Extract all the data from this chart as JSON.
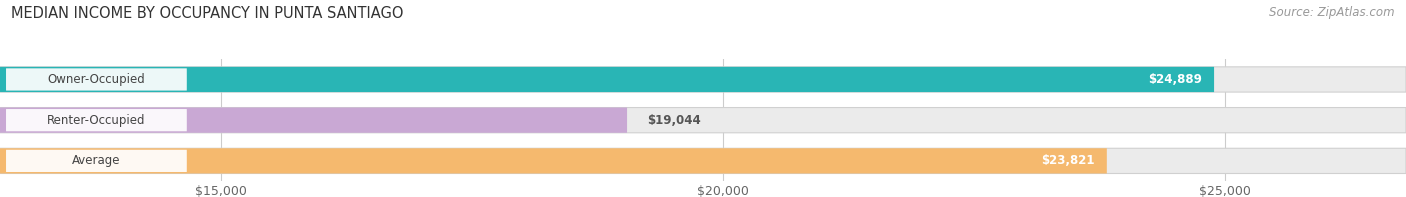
{
  "title": "MEDIAN INCOME BY OCCUPANCY IN PUNTA SANTIAGO",
  "source": "Source: ZipAtlas.com",
  "categories": [
    "Owner-Occupied",
    "Renter-Occupied",
    "Average"
  ],
  "values": [
    24889,
    19044,
    23821
  ],
  "bar_colors": [
    "#29b5b5",
    "#c9a8d4",
    "#f5b96e"
  ],
  "bar_bg_color": "#ebebeb",
  "value_labels": [
    "$24,889",
    "$19,044",
    "$23,821"
  ],
  "x_ticks": [
    15000,
    20000,
    25000
  ],
  "x_tick_labels": [
    "$15,000",
    "$20,000",
    "$25,000"
  ],
  "xlim_min": 12800,
  "xlim_max": 26800,
  "title_fontsize": 10.5,
  "source_fontsize": 8.5,
  "label_fontsize": 8.5,
  "tick_fontsize": 9,
  "bar_label_color_inside": "#ffffff",
  "bar_label_color_outside": "#555555",
  "background_color": "#ffffff",
  "grid_color": "#cccccc"
}
